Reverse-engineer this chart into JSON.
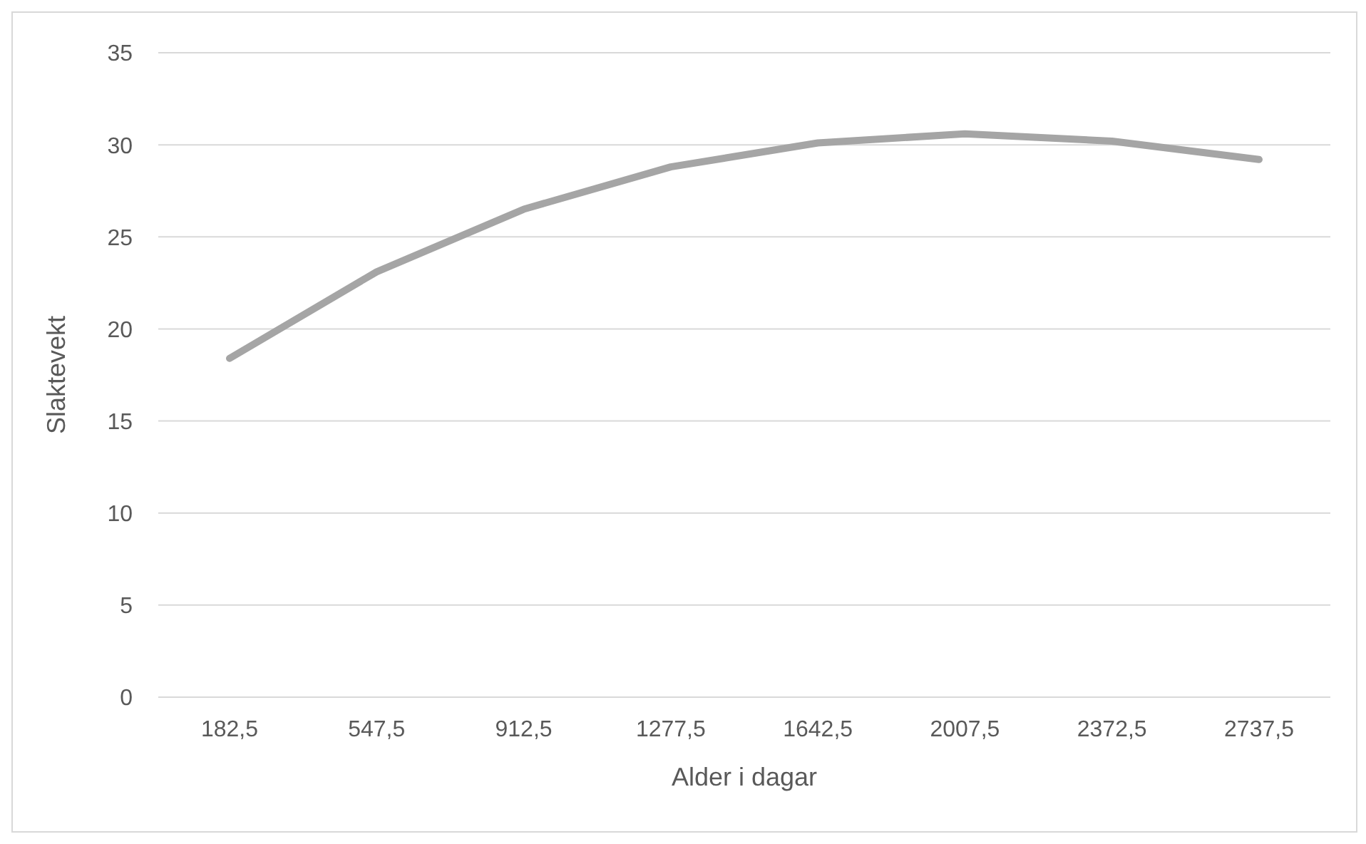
{
  "chart_data": {
    "type": "line",
    "xlabel": "Alder i dagar",
    "ylabel": "Slaktevekt",
    "categories": [
      "182,5",
      "547,5",
      "912,5",
      "1277,5",
      "1642,5",
      "2007,5",
      "2372,5",
      "2737,5"
    ],
    "series": [
      {
        "color": "#a5a5a5",
        "values": [
          18.4,
          23.1,
          26.5,
          28.8,
          30.1,
          30.6,
          30.2,
          29.2
        ]
      }
    ],
    "ylim": [
      0,
      35
    ],
    "yticks": [
      0,
      5,
      10,
      15,
      20,
      25,
      30,
      35
    ],
    "grid": "y",
    "legend": false,
    "marker": "none",
    "line_style": "solid"
  }
}
